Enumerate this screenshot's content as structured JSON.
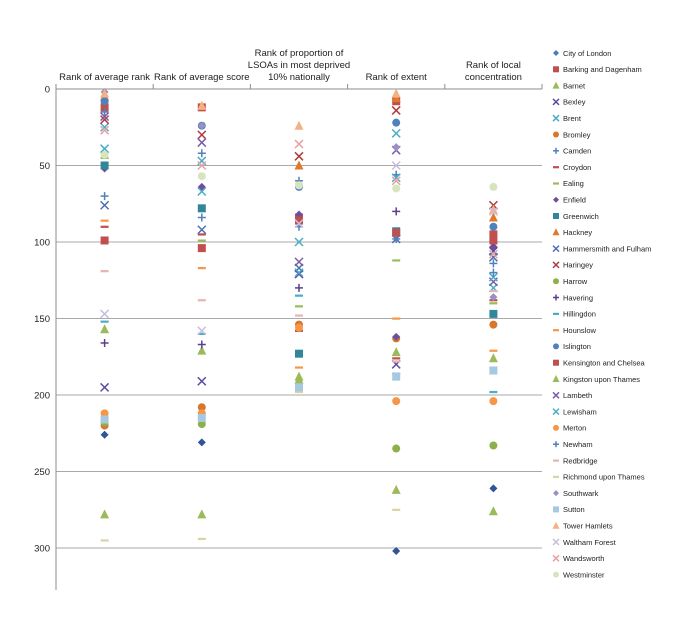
{
  "chart_data": {
    "type": "scatter",
    "y_reversed": true,
    "ylim": [
      0,
      320
    ],
    "y_ticks": [
      0,
      50,
      100,
      150,
      200,
      250,
      300
    ],
    "grid": true,
    "legend_position": "right",
    "categories": [
      "Rank of average rank",
      "Rank of average score",
      "Rank of proportion of LSOAs in most deprived 10% nationally",
      "Rank of extent",
      "Rank of local concentration"
    ],
    "series": [
      {
        "name": "City of London",
        "color": "#4a7bc0",
        "marker": "diamond",
        "values": [
          null,
          null,
          null,
          null,
          null
        ]
      },
      {
        "name": "Barking and Dagenham",
        "color": "#c0504d",
        "marker": "square",
        "values": [
          12,
          12,
          84,
          8,
          95
        ]
      },
      {
        "name": "Barnet",
        "color": "#9bbb59",
        "marker": "triangle",
        "values": [
          157,
          171,
          190,
          172,
          176
        ]
      },
      {
        "name": "Bexley",
        "color": "#5b4a9e",
        "marker": "x",
        "values": [
          195,
          191,
          121,
          180,
          106
        ]
      },
      {
        "name": "Brent",
        "color": "#4bacc6",
        "marker": "x",
        "values": [
          25,
          47,
          100,
          29,
          130
        ]
      },
      {
        "name": "Bromley",
        "color": "#d8762c",
        "marker": "circle",
        "values": [
          220,
          208,
          154,
          163,
          154
        ]
      },
      {
        "name": "Camden",
        "color": "#4f81bd",
        "marker": "plus",
        "values": [
          15,
          42,
          60,
          56,
          114
        ]
      },
      {
        "name": "Croydon",
        "color": "#c0504d",
        "marker": "dash",
        "values": [
          90,
          95,
          158,
          176,
          138
        ]
      },
      {
        "name": "Ealing",
        "color": "#9bbb59",
        "marker": "dash",
        "values": [
          45,
          99,
          142,
          112,
          140
        ]
      },
      {
        "name": "Enfield",
        "color": "#6d4f9e",
        "marker": "diamond",
        "values": [
          52,
          64,
          82,
          162,
          103
        ]
      },
      {
        "name": "Greenwich",
        "color": "#31869b",
        "marker": "square",
        "values": [
          50,
          78,
          173,
          93,
          147
        ]
      },
      {
        "name": "Hackney",
        "color": "#e07a2a",
        "marker": "triangle",
        "values": [
          5,
          11,
          50,
          6,
          84
        ]
      },
      {
        "name": "Hammersmith and Fulham",
        "color": "#4f6eb0",
        "marker": "x",
        "values": [
          76,
          92,
          117,
          98,
          110
        ]
      },
      {
        "name": "Haringey",
        "color": "#b03a3a",
        "marker": "x",
        "values": [
          20,
          30,
          44,
          14,
          76
        ]
      },
      {
        "name": "Harrow",
        "color": "#8db04a",
        "marker": "circle",
        "values": [
          218,
          219,
          196,
          235,
          233
        ]
      },
      {
        "name": "Havering",
        "color": "#5b3f8f",
        "marker": "plus",
        "values": [
          166,
          167,
          130,
          80,
          100
        ]
      },
      {
        "name": "Hillingdon",
        "color": "#4bacc6",
        "marker": "dash",
        "values": [
          152,
          160,
          135,
          186,
          198
        ]
      },
      {
        "name": "Hounslow",
        "color": "#f79646",
        "marker": "dash",
        "values": [
          86,
          117,
          182,
          150,
          171
        ]
      },
      {
        "name": "Islington",
        "color": "#4f81bd",
        "marker": "circle",
        "values": [
          8,
          24,
          64,
          22,
          90
        ]
      },
      {
        "name": "Kensington and Chelsea",
        "color": "#c0504d",
        "marker": "square",
        "values": [
          99,
          104,
          86,
          94,
          99
        ]
      },
      {
        "name": "Kingston upon Thames",
        "color": "#9bbb59",
        "marker": "triangle",
        "values": [
          278,
          278,
          188,
          262,
          276
        ]
      },
      {
        "name": "Lambeth",
        "color": "#7b5ea8",
        "marker": "x",
        "values": [
          18,
          35,
          113,
          40,
          126
        ]
      },
      {
        "name": "Lewisham",
        "color": "#4bacc6",
        "marker": "x",
        "values": [
          39,
          67,
          120,
          58,
          123
        ]
      },
      {
        "name": "Merton",
        "color": "#f79646",
        "marker": "circle",
        "values": [
          212,
          212,
          156,
          204,
          204
        ]
      },
      {
        "name": "Newham",
        "color": "#4f81bd",
        "marker": "plus",
        "values": [
          70,
          84,
          90,
          98,
          120
        ]
      },
      {
        "name": "Redbridge",
        "color": "#e6b3b3",
        "marker": "dash",
        "values": [
          119,
          138,
          148,
          178,
          132
        ]
      },
      {
        "name": "Richmond upon Thames",
        "color": "#d9d4a0",
        "marker": "dash",
        "values": [
          295,
          294,
          198,
          275,
          182
        ]
      },
      {
        "name": "Southwark",
        "color": "#9b8fc4",
        "marker": "diamond",
        "values": [
          2,
          24,
          62,
          38,
          136
        ]
      },
      {
        "name": "Sutton",
        "color": "#a6c9e2",
        "marker": "square",
        "values": [
          216,
          215,
          195,
          188,
          184
        ]
      },
      {
        "name": "Tower Hamlets",
        "color": "#f4b183",
        "marker": "triangle",
        "values": [
          3,
          11,
          24,
          3,
          79
        ]
      },
      {
        "name": "Waltham Forest",
        "color": "#c8bedc",
        "marker": "x",
        "values": [
          147,
          158,
          88,
          50,
          80
        ]
      },
      {
        "name": "Wandsworth",
        "color": "#e6a3a3",
        "marker": "x",
        "values": [
          27,
          50,
          36,
          60,
          108
        ]
      },
      {
        "name": "Westminster",
        "color": "#d7e4bd",
        "marker": "circle",
        "values": [
          43,
          57,
          63,
          65,
          64
        ]
      }
    ],
    "extra_points": [
      {
        "series_color": "#2f5596",
        "marker": "diamond",
        "values": [
          226,
          231,
          null,
          302,
          261
        ]
      }
    ]
  }
}
